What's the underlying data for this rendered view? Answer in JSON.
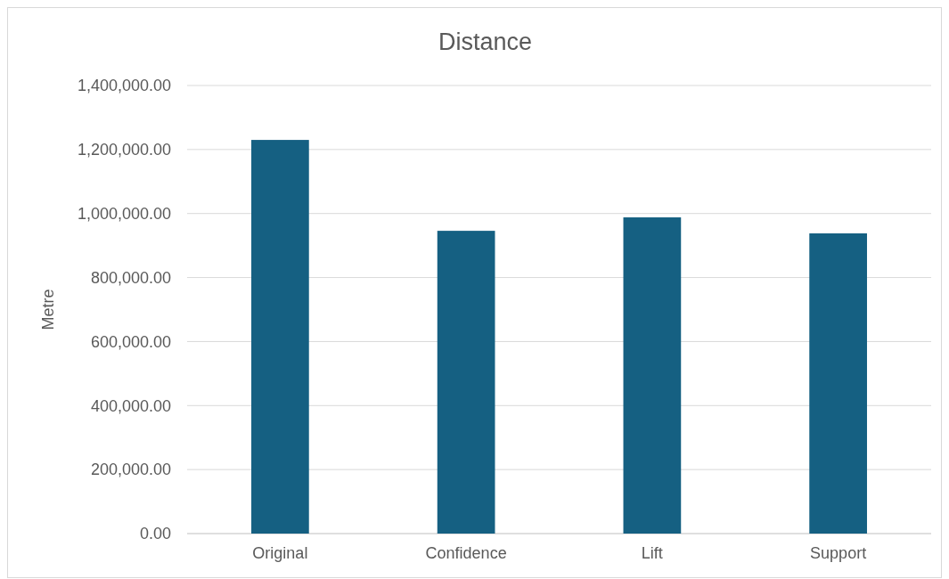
{
  "chart_data": {
    "type": "bar",
    "title": "Distance",
    "ylabel": "Metre",
    "categories": [
      "Original",
      "Confidence",
      "Lift",
      "Support"
    ],
    "values": [
      1230000,
      946000,
      988000,
      938000
    ],
    "color": "#156082",
    "ylim": [
      0,
      1400000
    ],
    "yticks": [
      {
        "value": 0,
        "label": "0.00"
      },
      {
        "value": 200000,
        "label": "200,000.00"
      },
      {
        "value": 400000,
        "label": "400,000.00"
      },
      {
        "value": 600000,
        "label": "600,000.00"
      },
      {
        "value": 800000,
        "label": "800,000.00"
      },
      {
        "value": 1000000,
        "label": "1,000,000.00"
      },
      {
        "value": 1200000,
        "label": "1,200,000.00"
      },
      {
        "value": 1400000,
        "label": "1,400,000.00"
      }
    ],
    "grid": "y"
  }
}
